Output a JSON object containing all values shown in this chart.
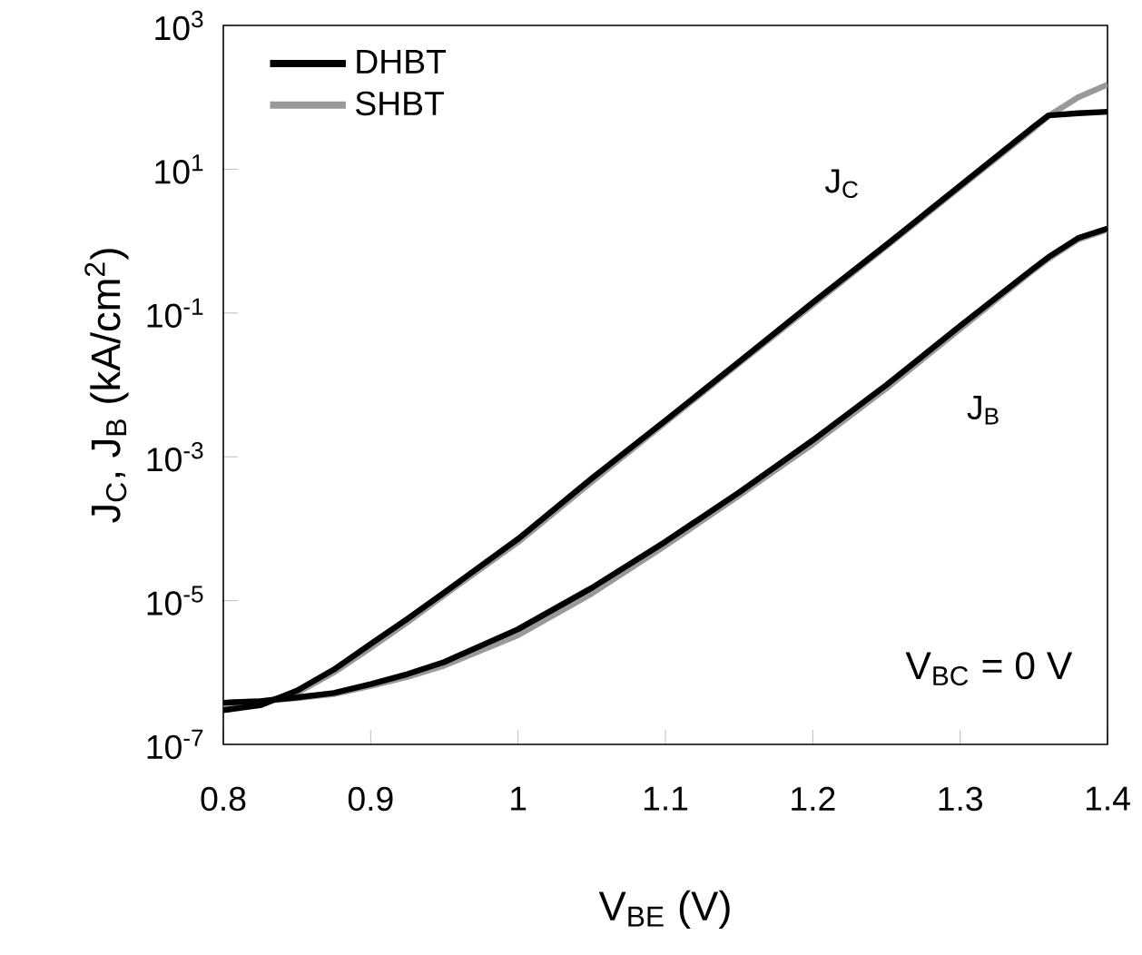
{
  "chart_data": {
    "type": "line",
    "xlabel": "V$_{BE}$ (V)",
    "ylabel": "J$_{C}$, J$_{B}$ (kA/cm$^{2}$)",
    "x": [
      0.8,
      0.825,
      0.85,
      0.875,
      0.9,
      0.925,
      0.95,
      1.0,
      1.05,
      1.1,
      1.15,
      1.2,
      1.25,
      1.3,
      1.35,
      1.36,
      1.38,
      1.4
    ],
    "series": [
      {
        "name": "DHBT",
        "color": "#000000",
        "values": [
          3e-07,
          3.5e-07,
          5.6e-07,
          1.1e-06,
          2.5e-06,
          5.6e-06,
          1.3e-05,
          7.2e-05,
          0.0005,
          0.0032,
          0.021,
          0.14,
          0.89,
          5.9,
          39,
          56,
          60,
          63
        ]
      },
      {
        "color": "#000000",
        "values": [
          3.8e-07,
          4e-07,
          4.5e-07,
          5.2e-07,
          6.9e-07,
          9.5e-07,
          1.4e-06,
          4e-06,
          1.5e-05,
          6.6e-05,
          0.00032,
          0.0017,
          0.01,
          0.066,
          0.42,
          0.6,
          1.1,
          1.5
        ]
      },
      {
        "name": "SHBT",
        "color": "#999999",
        "values": [
          3.5e-07,
          3.8e-07,
          5.2e-07,
          1e-06,
          2.2e-06,
          5e-06,
          1.2e-05,
          6.5e-05,
          0.00045,
          0.003,
          0.02,
          0.13,
          0.85,
          5.6,
          37,
          55,
          100,
          150
        ]
      },
      {
        "color": "#999999",
        "values": [
          3.8e-07,
          4e-07,
          4.4e-07,
          5e-07,
          6.5e-07,
          8.7e-07,
          1.25e-06,
          3.3e-06,
          1.25e-05,
          5.8e-05,
          0.00029,
          0.0015,
          0.009,
          0.06,
          0.4,
          0.57,
          1.05,
          1.45
        ]
      }
    ],
    "xlim": [
      0.8,
      1.4
    ],
    "xticks": [
      0.8,
      0.9,
      1,
      1.1,
      1.2,
      1.3,
      1.4
    ],
    "ylim": [
      1e-07,
      1000
    ],
    "log": "y",
    "yticks": [
      {
        "value": 1e-07,
        "label": "10$^{-7}$"
      },
      {
        "value": 1e-05,
        "label": "10$^{-5}$"
      },
      {
        "value": 0.001,
        "label": "10$^{-3}$"
      },
      {
        "value": 0.1,
        "label": "10$^{-1}$"
      },
      {
        "value": 10,
        "label": "10$^{1}$"
      },
      {
        "value": 1000,
        "label": "10$^{3}$"
      }
    ],
    "legend": "top left",
    "line_style": "solid",
    "annotations": [
      "J$_{C}$",
      "J$_{B}$",
      "V$_{BC}$ = 0 V"
    ]
  }
}
